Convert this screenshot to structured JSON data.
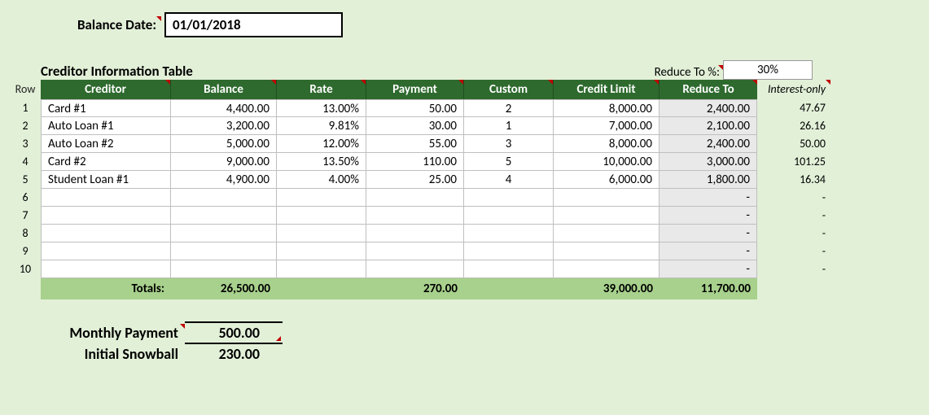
{
  "layout": {
    "background_color": "#e2f0d8",
    "header_bg": "#2e6a2e",
    "header_fg": "#ffffff",
    "cell_bg": "#ffffff",
    "calc_bg": "#e9e9e9",
    "totals_bg": "#a7d18c",
    "border_color": "#bfbfbf",
    "indicator_color": "#c00000",
    "font_family": "Calibri"
  },
  "balance_date": {
    "label": "Balance Date:",
    "value": "01/01/2018"
  },
  "table_title": "Creditor Information Table",
  "reduce_to_pct": {
    "label": "Reduce To %:",
    "value": "30%"
  },
  "row_head": "Row",
  "columns": {
    "creditor": "Creditor",
    "balance": "Balance",
    "rate": "Rate",
    "payment": "Payment",
    "custom": "Custom",
    "credit_limit": "Credit Limit",
    "reduce_to": "Reduce To",
    "interest_only": "Interest-only"
  },
  "rows": [
    {
      "n": "1",
      "creditor": "Card #1",
      "balance": "4,400.00",
      "rate": "13.00%",
      "payment": "50.00",
      "custom": "2",
      "credit_limit": "8,000.00",
      "reduce_to": "2,400.00",
      "interest": "47.67"
    },
    {
      "n": "2",
      "creditor": "Auto Loan #1",
      "balance": "3,200.00",
      "rate": "9.81%",
      "payment": "30.00",
      "custom": "1",
      "credit_limit": "7,000.00",
      "reduce_to": "2,100.00",
      "interest": "26.16"
    },
    {
      "n": "3",
      "creditor": "Auto Loan #2",
      "balance": "5,000.00",
      "rate": "12.00%",
      "payment": "55.00",
      "custom": "3",
      "credit_limit": "8,000.00",
      "reduce_to": "2,400.00",
      "interest": "50.00"
    },
    {
      "n": "4",
      "creditor": "Card #2",
      "balance": "9,000.00",
      "rate": "13.50%",
      "payment": "110.00",
      "custom": "5",
      "credit_limit": "10,000.00",
      "reduce_to": "3,000.00",
      "interest": "101.25"
    },
    {
      "n": "5",
      "creditor": "Student Loan #1",
      "balance": "4,900.00",
      "rate": "4.00%",
      "payment": "25.00",
      "custom": "4",
      "credit_limit": "6,000.00",
      "reduce_to": "1,800.00",
      "interest": "16.34"
    },
    {
      "n": "6",
      "creditor": "",
      "balance": "",
      "rate": "",
      "payment": "",
      "custom": "",
      "credit_limit": "",
      "reduce_to": "-",
      "interest": "-"
    },
    {
      "n": "7",
      "creditor": "",
      "balance": "",
      "rate": "",
      "payment": "",
      "custom": "",
      "credit_limit": "",
      "reduce_to": "-",
      "interest": "-"
    },
    {
      "n": "8",
      "creditor": "",
      "balance": "",
      "rate": "",
      "payment": "",
      "custom": "",
      "credit_limit": "",
      "reduce_to": "-",
      "interest": "-"
    },
    {
      "n": "9",
      "creditor": "",
      "balance": "",
      "rate": "",
      "payment": "",
      "custom": "",
      "credit_limit": "",
      "reduce_to": "-",
      "interest": "-"
    },
    {
      "n": "10",
      "creditor": "",
      "balance": "",
      "rate": "",
      "payment": "",
      "custom": "",
      "credit_limit": "",
      "reduce_to": "-",
      "interest": "-"
    }
  ],
  "totals": {
    "label": "Totals:",
    "balance": "26,500.00",
    "payment": "270.00",
    "credit_limit": "39,000.00",
    "reduce_to": "11,700.00"
  },
  "monthly_payment": {
    "label": "Monthly Payment",
    "value": "500.00"
  },
  "initial_snowball": {
    "label": "Initial Snowball",
    "value": "230.00"
  }
}
